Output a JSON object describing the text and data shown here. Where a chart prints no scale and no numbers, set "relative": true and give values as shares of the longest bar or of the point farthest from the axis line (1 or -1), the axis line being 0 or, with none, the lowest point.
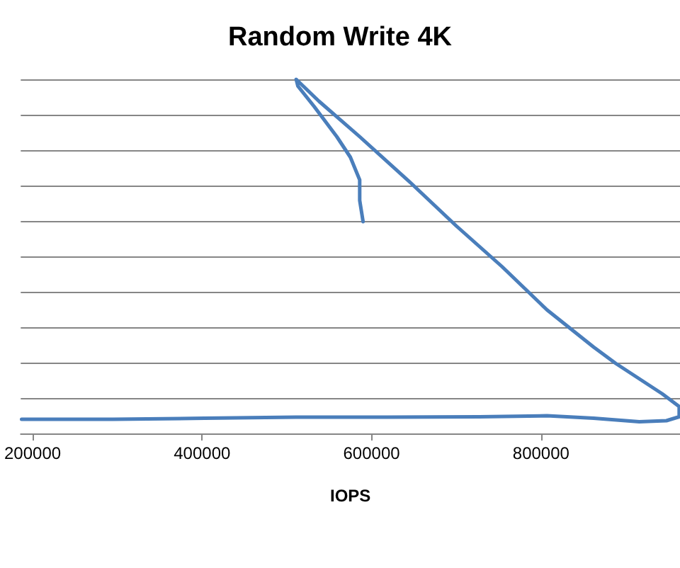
{
  "chart_data": {
    "type": "line",
    "title": "Random Write 4K",
    "xlabel": "IOPS",
    "relative": true,
    "grid": "y",
    "marker": "none",
    "line_style": "solid",
    "xlim": [
      186000,
      964000
    ],
    "xticks": [
      200000,
      400000,
      600000,
      800000
    ],
    "series": [
      {
        "color": "#4a7ebb",
        "x": [
          187000,
          295000,
          403000,
          511000,
          619000,
          727000,
          807000,
          862000,
          916000,
          948000,
          963000,
          963000,
          943000,
          888000,
          862000,
          807000,
          754000,
          700000,
          646000,
          586000,
          538000,
          511000,
          513000,
          532000,
          559000,
          575000,
          586000,
          586000,
          590000
        ],
        "values": [
          0.04,
          0.04,
          0.043,
          0.046,
          0.046,
          0.047,
          0.05,
          0.043,
          0.033,
          0.036,
          0.047,
          0.076,
          0.112,
          0.198,
          0.244,
          0.349,
          0.471,
          0.586,
          0.708,
          0.838,
          0.938,
          1,
          0.981,
          0.924,
          0.838,
          0.78,
          0.716,
          0.658,
          0.598
        ]
      }
    ]
  }
}
